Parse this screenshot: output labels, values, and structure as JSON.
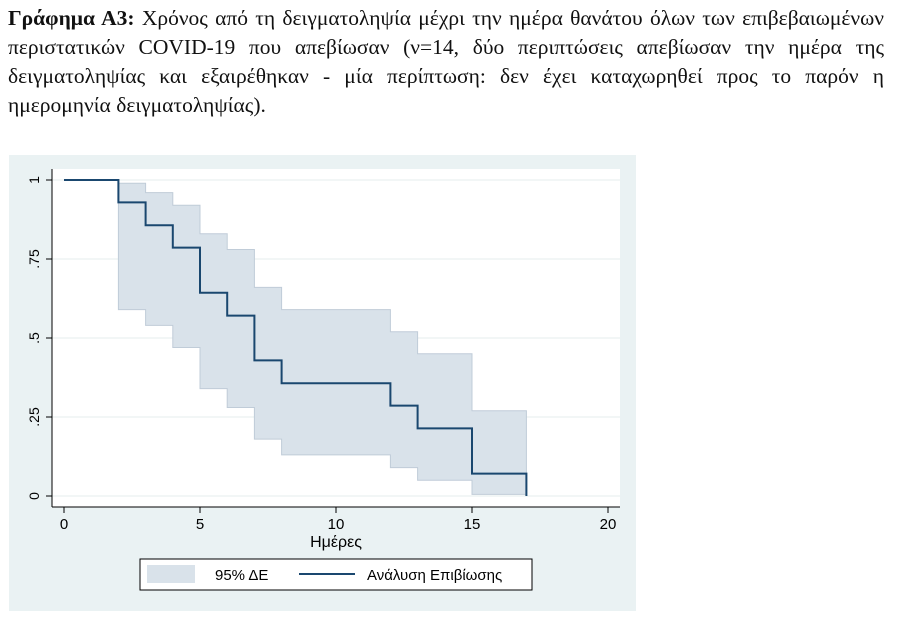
{
  "caption": {
    "lead": "Γράφημα Α3:",
    "text": "Χρόνος από τη δειγματοληψία μέχρι την ημέρα θανάτου όλων των επιβεβαιωμένων περιστατικών COVID-19 που απεβίωσαν (ν=14, δύο περιπτώσεις απεβίωσαν την ημέρα της δειγματοληψίας και εξαιρέθηκαν - μία περίπτωση: δεν έχει καταχωρηθεί προς το παρόν η ημερομηνία δειγματοληψίας)."
  },
  "colors": {
    "plot_region": "#eaf2f3",
    "ci_fill": "#d9e2ea",
    "ci_edge": "#c0ccd8",
    "survival_line": "#1a476f",
    "grid": "#ffffff"
  },
  "chart_data": {
    "type": "line",
    "xlabel": "Ημέρες",
    "ylabel": "",
    "xlim": [
      0,
      20
    ],
    "ylim": [
      0,
      1
    ],
    "xticks": [
      0,
      5,
      10,
      15,
      20
    ],
    "xtick_labels": [
      "0",
      "5",
      "10",
      "15",
      "20"
    ],
    "yticks": [
      0,
      0.25,
      0.5,
      0.75,
      1
    ],
    "ytick_labels": [
      "0",
      ".25",
      ".5",
      ".75",
      "1"
    ],
    "grid": true,
    "legend_position": "bottom",
    "step": true,
    "series": [
      {
        "name": "Ανάλυση Επιβίωσης",
        "kind": "step-line",
        "x": [
          0,
          2,
          3,
          4,
          5,
          6,
          7,
          8,
          12,
          13,
          15,
          17
        ],
        "y": [
          1,
          0.929,
          0.857,
          0.786,
          0.643,
          0.571,
          0.429,
          0.357,
          0.286,
          0.214,
          0.071,
          0
        ]
      },
      {
        "name": "95% ΔΕ",
        "kind": "confidence-band",
        "x": [
          2,
          3,
          4,
          5,
          6,
          7,
          8,
          12,
          13,
          15,
          17
        ],
        "upper": [
          0.99,
          0.96,
          0.92,
          0.83,
          0.78,
          0.66,
          0.59,
          0.52,
          0.45,
          0.27,
          0.27
        ],
        "lower": [
          0.59,
          0.54,
          0.47,
          0.34,
          0.28,
          0.18,
          0.13,
          0.09,
          0.05,
          0.005,
          0.005
        ]
      }
    ]
  }
}
